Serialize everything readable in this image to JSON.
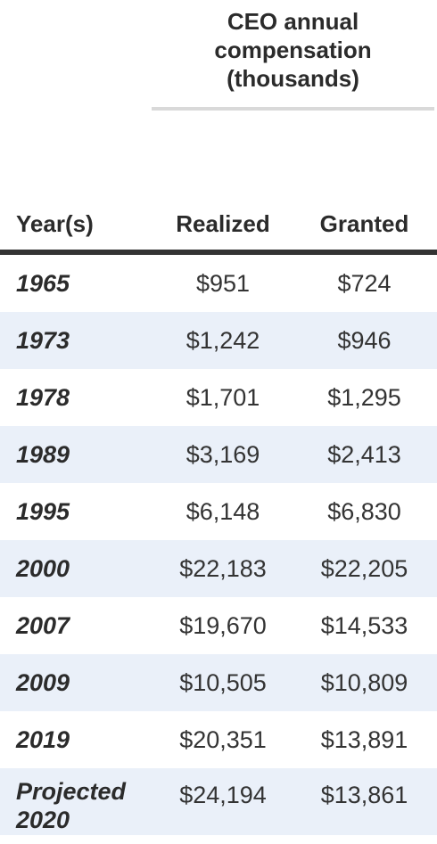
{
  "table": {
    "group_header": "CEO annual compensation (thousands)",
    "columns": [
      "Year(s)",
      "Realized",
      "Granted"
    ]
  },
  "chart_data": {
    "type": "table",
    "title": "CEO annual compensation (thousands)",
    "columns": [
      "Year(s)",
      "Realized",
      "Granted"
    ],
    "rows": [
      {
        "year": "1965",
        "realized": "$951",
        "granted": "$724"
      },
      {
        "year": "1973",
        "realized": "$1,242",
        "granted": "$946"
      },
      {
        "year": "1978",
        "realized": "$1,701",
        "granted": "$1,295"
      },
      {
        "year": "1989",
        "realized": "$3,169",
        "granted": "$2,413"
      },
      {
        "year": "1995",
        "realized": "$6,148",
        "granted": "$6,830"
      },
      {
        "year": "2000",
        "realized": "$22,183",
        "granted": "$22,205"
      },
      {
        "year": "2007",
        "realized": "$19,670",
        "granted": "$14,533"
      },
      {
        "year": "2009",
        "realized": "$10,505",
        "granted": "$10,809"
      },
      {
        "year": "2019",
        "realized": "$20,351",
        "granted": "$13,891"
      },
      {
        "year": "Projected 2020",
        "realized": "$24,194",
        "granted": "$13,861"
      }
    ]
  }
}
